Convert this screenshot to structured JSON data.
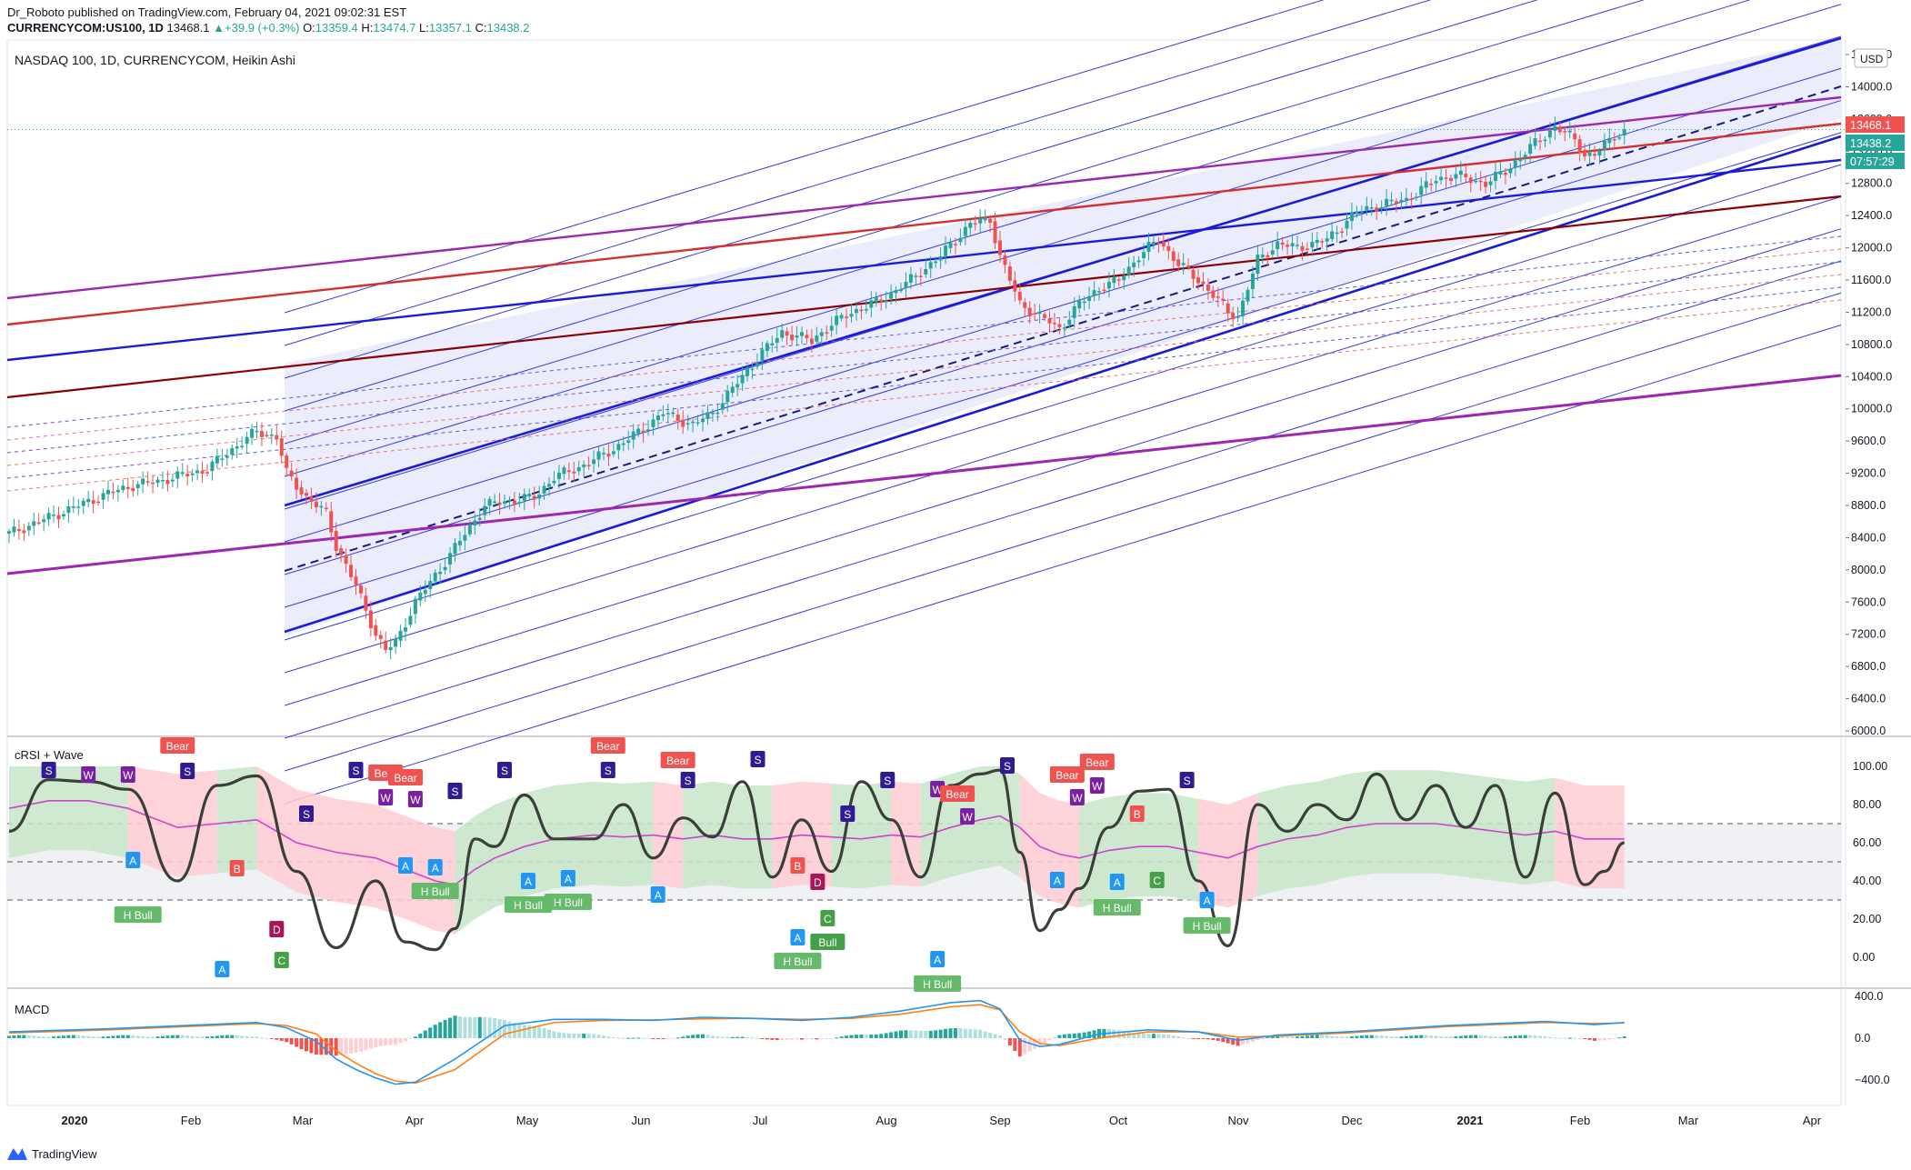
{
  "header": {
    "line1": "Dr_Roboto published on TradingView.com, February 04, 2021 09:02:31 EST",
    "symbol": "CURRENCYCOM:US100, 1D",
    "price": "13468.1",
    "change": "+39.9 (+0.3%)",
    "ohlc_o_label": "O:",
    "ohlc_o": "13359.4",
    "ohlc_h_label": "H:",
    "ohlc_h": "13474.7",
    "ohlc_l_label": "L:",
    "ohlc_l": "13357.1",
    "ohlc_c_label": "C:",
    "ohlc_c": "13438.2"
  },
  "brand": "TradingView",
  "colors": {
    "up": "#26a69a",
    "down": "#ef5350",
    "accent": "#2962ff",
    "pitchfork": "#1a1adb",
    "purple": "#9c27b0",
    "red": "#d32f2f",
    "darkred": "#8b0000"
  },
  "chart_data": [
    {
      "type": "candlestick",
      "title": "NASDAQ 100, 1D, CURRENCYCOM, Heikin Ashi",
      "currency": "USD",
      "ylim": [
        6000,
        14400
      ],
      "y_ticks": [
        "14400.0",
        "14000.0",
        "13600.0",
        "13200.0",
        "12800.0",
        "12400.0",
        "12000.0",
        "11600.0",
        "11200.0",
        "10800.0",
        "10400.0",
        "10000.0",
        "9600.0",
        "9200.0",
        "8800.0",
        "8400.0",
        "8000.0",
        "7600.0",
        "7200.0",
        "6800.0",
        "6400.0",
        "6000.0"
      ],
      "x_ticks": [
        "2020",
        "Feb",
        "Mar",
        "Apr",
        "May",
        "Jun",
        "Jul",
        "Aug",
        "Sep",
        "Oct",
        "Nov",
        "Dec",
        "2021",
        "Feb",
        "Mar",
        "Apr"
      ],
      "price_labels": [
        {
          "text": "13468.1",
          "color": "#ef5350",
          "value": 13468.1
        },
        {
          "text": "13438.2",
          "color": "#26a69a",
          "value": 13438.2
        },
        {
          "text": "07:57:29",
          "color": "#26a69a",
          "value": 13080
        }
      ],
      "close_path": [
        [
          0,
          8450
        ],
        [
          10,
          8700
        ],
        [
          20,
          8950
        ],
        [
          25,
          9050
        ],
        [
          30,
          9100
        ],
        [
          40,
          9250
        ],
        [
          45,
          9500
        ],
        [
          50,
          9720
        ],
        [
          54,
          9650
        ],
        [
          56,
          9200
        ],
        [
          60,
          8900
        ],
        [
          64,
          8700
        ],
        [
          66,
          8300
        ],
        [
          70,
          7800
        ],
        [
          74,
          7200
        ],
        [
          76,
          7000
        ],
        [
          78,
          7100
        ],
        [
          82,
          7600
        ],
        [
          88,
          8100
        ],
        [
          92,
          8450
        ],
        [
          96,
          8800
        ],
        [
          100,
          8850
        ],
        [
          106,
          8900
        ],
        [
          110,
          9150
        ],
        [
          116,
          9300
        ],
        [
          122,
          9500
        ],
        [
          128,
          9750
        ],
        [
          132,
          9950
        ],
        [
          138,
          9800
        ],
        [
          142,
          9950
        ],
        [
          146,
          10250
        ],
        [
          152,
          10700
        ],
        [
          156,
          10950
        ],
        [
          162,
          10850
        ],
        [
          166,
          11050
        ],
        [
          170,
          11200
        ],
        [
          176,
          11350
        ],
        [
          182,
          11600
        ],
        [
          188,
          11900
        ],
        [
          194,
          12300
        ],
        [
          198,
          12350
        ],
        [
          200,
          11900
        ],
        [
          204,
          11300
        ],
        [
          208,
          11150
        ],
        [
          212,
          11000
        ],
        [
          216,
          11300
        ],
        [
          220,
          11500
        ],
        [
          224,
          11600
        ],
        [
          228,
          11900
        ],
        [
          232,
          12100
        ],
        [
          236,
          11800
        ],
        [
          240,
          11600
        ],
        [
          244,
          11350
        ],
        [
          246,
          11200
        ],
        [
          248,
          11150
        ],
        [
          252,
          11850
        ],
        [
          256,
          12050
        ],
        [
          260,
          12000
        ],
        [
          266,
          12100
        ],
        [
          272,
          12450
        ],
        [
          278,
          12550
        ],
        [
          282,
          12600
        ],
        [
          288,
          12850
        ],
        [
          292,
          12900
        ],
        [
          298,
          12800
        ],
        [
          302,
          12950
        ],
        [
          308,
          13300
        ],
        [
          312,
          13500
        ],
        [
          316,
          13350
        ],
        [
          318,
          13150
        ],
        [
          320,
          13150
        ],
        [
          324,
          13400
        ],
        [
          326,
          13438
        ]
      ],
      "sample_points": [
        {
          "x": "2020-01-03",
          "close": 8500
        },
        {
          "x": "2020-02-19",
          "close": 9700
        },
        {
          "x": "2020-03-23",
          "close": 6850
        },
        {
          "x": "2020-06-08",
          "close": 10000
        },
        {
          "x": "2020-09-02",
          "close": 12350
        },
        {
          "x": "2020-09-23",
          "close": 10900
        },
        {
          "x": "2020-10-12",
          "close": 12100
        },
        {
          "x": "2020-10-30",
          "close": 11100
        },
        {
          "x": "2021-01-26",
          "close": 13500
        },
        {
          "x": "2021-02-03",
          "close": 13438
        }
      ]
    },
    {
      "type": "line",
      "title": "cRSI + Wave",
      "ylim": [
        -10,
        110
      ],
      "y_ticks": [
        "100.00",
        "80.00",
        "60.00",
        "40.00",
        "20.00",
        "0.00"
      ],
      "levels": [
        70,
        50,
        30
      ],
      "x": [
        0,
        8,
        16,
        24,
        34,
        42,
        50,
        58,
        66,
        74,
        80,
        86,
        90,
        94,
        98,
        104,
        110,
        118,
        124,
        130,
        136,
        142,
        148,
        154,
        160,
        166,
        172,
        178,
        184,
        190,
        196,
        200,
        204,
        208,
        212,
        216,
        222,
        228,
        234,
        240,
        246,
        252,
        258,
        264,
        270,
        276,
        282,
        288,
        294,
        300,
        306,
        312,
        318,
        322,
        326
      ],
      "crsi": [
        66,
        93,
        92,
        88,
        40,
        90,
        95,
        45,
        5,
        40,
        8,
        4,
        15,
        62,
        58,
        85,
        62,
        62,
        80,
        52,
        73,
        63,
        92,
        42,
        72,
        45,
        92,
        72,
        42,
        90,
        96,
        98,
        55,
        14,
        25,
        36,
        68,
        87,
        88,
        40,
        6,
        80,
        66,
        80,
        72,
        96,
        72,
        90,
        68,
        90,
        42,
        86,
        38,
        45,
        60
      ],
      "wave": [
        78,
        82,
        82,
        78,
        68,
        70,
        72,
        60,
        55,
        52,
        46,
        40,
        38,
        46,
        52,
        58,
        62,
        64,
        63,
        64,
        62,
        64,
        62,
        62,
        64,
        63,
        62,
        64,
        63,
        68,
        72,
        74,
        68,
        58,
        54,
        52,
        56,
        58,
        58,
        55,
        52,
        58,
        62,
        64,
        68,
        70,
        70,
        70,
        68,
        66,
        64,
        66,
        62,
        62,
        62
      ],
      "signals": [
        {
          "label": "Bear",
          "kind": "bear"
        },
        {
          "label": "H Bull",
          "kind": "hbull"
        },
        {
          "label": "Bull",
          "kind": "bull"
        },
        {
          "label": "S",
          "kind": "s"
        },
        {
          "label": "W",
          "kind": "w"
        },
        {
          "label": "A",
          "kind": "a"
        },
        {
          "label": "B",
          "kind": "b"
        },
        {
          "label": "C",
          "kind": "c"
        },
        {
          "label": "D",
          "kind": "d"
        }
      ]
    },
    {
      "type": "bar",
      "title": "MACD",
      "ylim": [
        -500,
        450
      ],
      "y_ticks": [
        "400.0",
        "0.0",
        "−400.0"
      ],
      "x": [
        0,
        20,
        40,
        50,
        56,
        62,
        66,
        70,
        74,
        78,
        82,
        90,
        100,
        110,
        120,
        130,
        140,
        150,
        160,
        170,
        180,
        190,
        196,
        200,
        204,
        208,
        212,
        220,
        230,
        240,
        248,
        256,
        270,
        290,
        310,
        320,
        326
      ],
      "macd": [
        60,
        90,
        130,
        150,
        100,
        -30,
        -200,
        -300,
        -380,
        -440,
        -420,
        -200,
        120,
        180,
        180,
        170,
        200,
        190,
        170,
        200,
        260,
        340,
        360,
        280,
        -20,
        -80,
        -60,
        40,
        80,
        60,
        -20,
        30,
        60,
        120,
        160,
        130,
        150
      ],
      "signal": [
        50,
        80,
        120,
        140,
        120,
        40,
        -120,
        -240,
        -340,
        -410,
        -430,
        -300,
        40,
        150,
        170,
        175,
        185,
        190,
        180,
        190,
        230,
        300,
        320,
        270,
        60,
        -50,
        -70,
        0,
        60,
        60,
        10,
        20,
        50,
        110,
        150,
        140,
        145
      ]
    }
  ],
  "signal_texts": {
    "bear": "Bear",
    "bull": "Bull",
    "hbull": "H Bull",
    "s": "S",
    "w": "W",
    "a": "A",
    "b": "B",
    "c": "C",
    "d": "D"
  }
}
